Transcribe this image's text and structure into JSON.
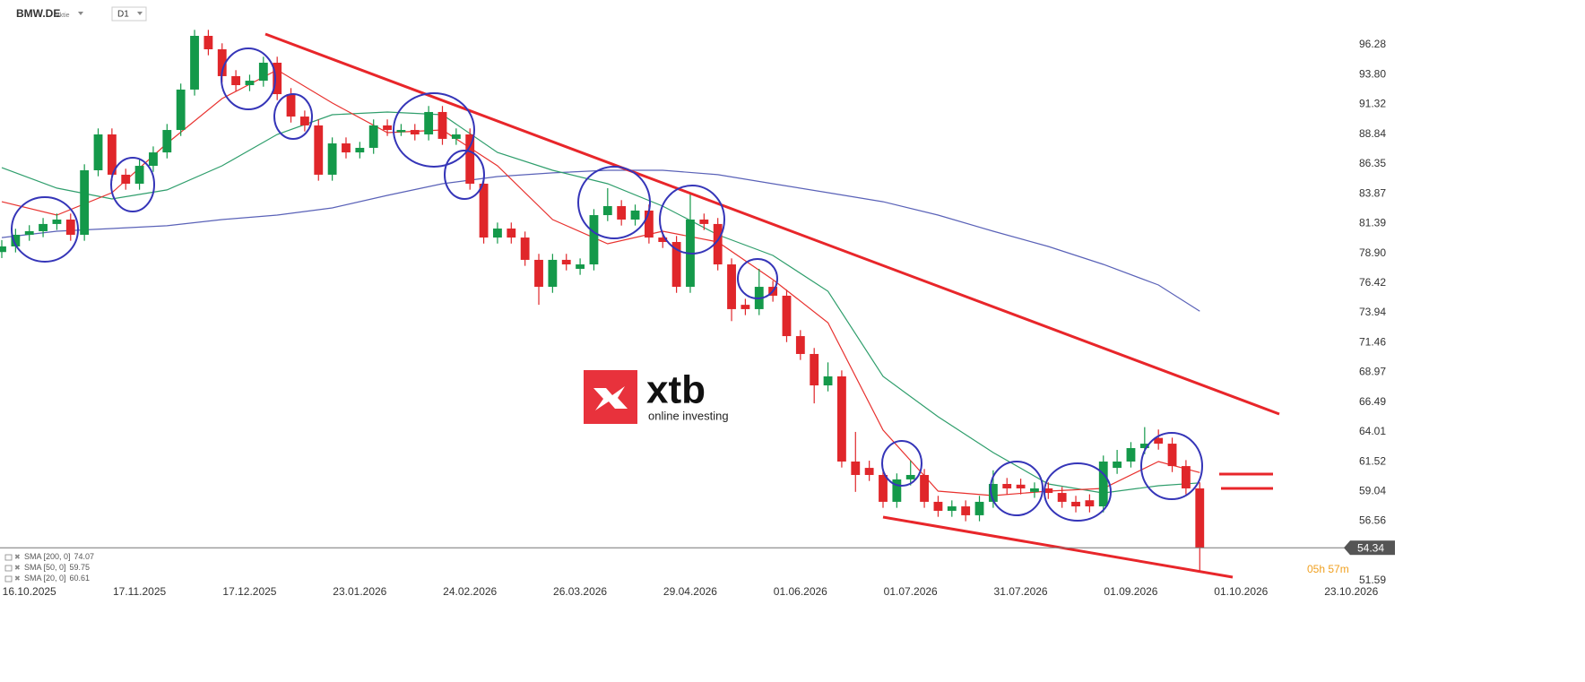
{
  "chart_data": {
    "type": "candlestick",
    "symbol": "BMW.DE",
    "instrument_type": "Aktie",
    "timeframe": "D1",
    "countdown": "05h 57m",
    "watermark": {
      "brand": "xtb",
      "tagline": "online investing"
    },
    "up_color": "#14994a",
    "down_color": "#e0262a",
    "xlim": [
      -0.13,
      97.53
    ],
    "ylim": [
      51.44,
      100.02
    ],
    "xticks": [
      {
        "value": 2,
        "label": "16.10.2025"
      },
      {
        "value": 10,
        "label": "17.11.2025"
      },
      {
        "value": 18,
        "label": "17.12.2025"
      },
      {
        "value": 26,
        "label": "23.01.2026"
      },
      {
        "value": 34,
        "label": "24.02.2026"
      },
      {
        "value": 42,
        "label": "26.03.2026"
      },
      {
        "value": 50,
        "label": "29.04.2026"
      },
      {
        "value": 58,
        "label": "01.06.2026"
      },
      {
        "value": 66,
        "label": "01.07.2026"
      },
      {
        "value": 74,
        "label": "31.07.2026"
      },
      {
        "value": 82,
        "label": "01.09.2026"
      },
      {
        "value": 90,
        "label": "01.10.2026"
      },
      {
        "value": 98,
        "label": "23.10.2026"
      }
    ],
    "yticks": [
      96.28,
      {
        "value": 93.8,
        "label": "93.80"
      },
      91.32,
      88.84,
      86.35,
      83.87,
      81.39,
      {
        "value": 78.9,
        "label": "78.90"
      },
      76.42,
      73.94,
      71.46,
      68.97,
      66.49,
      64.01,
      61.52,
      59.04,
      56.56,
      51.59
    ],
    "open": [
      79.0,
      79.47,
      80.44,
      80.74,
      81.34,
      81.71,
      80.44,
      85.82,
      88.81,
      85.45,
      84.7,
      86.19,
      87.31,
      89.18,
      92.55,
      97.03,
      95.91,
      93.67,
      92.92,
      93.29,
      94.79,
      92.17,
      90.3,
      89.56,
      85.45,
      88.06,
      87.31,
      87.69,
      89.56,
      89.0,
      89.18,
      88.81,
      90.68,
      88.44,
      88.81,
      84.7,
      80.21,
      80.96,
      80.21,
      78.35,
      76.1,
      78.35,
      77.6,
      77.97,
      82.08,
      82.83,
      81.71,
      82.46,
      80.21,
      79.84,
      76.1,
      81.71,
      81.34,
      77.97,
      74.6,
      74.24,
      76.1,
      75.36,
      71.99,
      70.5,
      67.88,
      68.63,
      61.53,
      61.0,
      60.41,
      58.17,
      60.04,
      60.41,
      58.17,
      57.42,
      57.79,
      57.05,
      58.17,
      59.66,
      59.6,
      59.0,
      59.29,
      58.91,
      58.17,
      58.3,
      57.79,
      61.0,
      61.53,
      62.65,
      63.5,
      63.02,
      61.15,
      59.29
    ],
    "high": [
      80.0,
      80.94,
      81.24,
      81.84,
      82.21,
      82.21,
      86.32,
      89.31,
      89.31,
      85.95,
      86.69,
      87.81,
      89.68,
      93.05,
      97.53,
      97.53,
      96.41,
      94.17,
      93.79,
      95.29,
      95.29,
      92.67,
      90.8,
      90.06,
      88.56,
      88.56,
      88.19,
      90.06,
      90.06,
      89.68,
      89.68,
      91.18,
      91.18,
      89.31,
      89.31,
      85.2,
      81.46,
      81.46,
      80.71,
      78.85,
      78.85,
      78.85,
      78.47,
      82.58,
      84.33,
      83.33,
      82.96,
      82.96,
      80.71,
      80.34,
      83.96,
      82.21,
      81.84,
      78.47,
      75.1,
      77.6,
      76.6,
      75.86,
      72.49,
      71.0,
      69.8,
      69.13,
      64.0,
      61.6,
      60.91,
      60.54,
      61.6,
      60.91,
      58.67,
      58.29,
      58.29,
      58.67,
      60.8,
      60.16,
      60.1,
      59.79,
      59.79,
      59.41,
      58.67,
      58.8,
      62.03,
      62.5,
      63.15,
      64.4,
      64.2,
      63.52,
      61.65,
      59.79
    ],
    "low": [
      78.5,
      78.97,
      79.94,
      80.24,
      80.84,
      79.94,
      79.94,
      85.32,
      84.95,
      84.2,
      84.2,
      85.69,
      86.81,
      88.68,
      92.05,
      95.41,
      93.17,
      92.42,
      92.42,
      92.79,
      91.67,
      89.8,
      89.06,
      84.95,
      84.95,
      86.81,
      86.81,
      87.19,
      88.68,
      88.68,
      88.31,
      88.31,
      87.94,
      87.94,
      84.2,
      79.71,
      79.71,
      79.71,
      77.85,
      74.6,
      75.6,
      77.47,
      77.1,
      77.47,
      81.58,
      81.21,
      81.21,
      79.71,
      79.34,
      75.6,
      75.6,
      80.84,
      77.47,
      73.24,
      73.74,
      73.74,
      74.86,
      71.49,
      70.0,
      66.38,
      67.38,
      61.03,
      59.0,
      59.91,
      57.67,
      57.67,
      59.54,
      57.67,
      56.92,
      56.92,
      56.55,
      56.55,
      57.67,
      58.79,
      58.79,
      58.5,
      58.41,
      57.67,
      57.29,
      57.29,
      57.29,
      60.5,
      61.03,
      62.15,
      62.52,
      60.65,
      58.79,
      52.3
    ],
    "close": [
      79.47,
      80.44,
      80.74,
      81.34,
      81.71,
      80.44,
      85.82,
      88.81,
      85.45,
      84.7,
      86.19,
      87.31,
      89.18,
      92.55,
      97.03,
      95.91,
      93.67,
      92.92,
      93.29,
      94.79,
      92.17,
      90.3,
      89.56,
      85.45,
      88.06,
      87.31,
      87.69,
      89.56,
      89.18,
      89.18,
      88.81,
      90.68,
      88.44,
      88.81,
      84.7,
      80.21,
      80.96,
      80.21,
      78.35,
      76.1,
      78.35,
      77.97,
      77.97,
      82.08,
      82.83,
      81.71,
      82.46,
      80.21,
      79.84,
      76.1,
      81.71,
      81.34,
      77.97,
      74.24,
      74.24,
      76.1,
      75.36,
      71.99,
      70.5,
      67.88,
      68.63,
      61.53,
      60.41,
      60.41,
      58.17,
      60.04,
      60.41,
      58.17,
      57.42,
      57.79,
      57.05,
      58.17,
      59.66,
      59.29,
      59.29,
      59.29,
      58.91,
      58.17,
      57.79,
      57.79,
      61.53,
      61.53,
      62.65,
      63.02,
      63.02,
      61.15,
      59.29,
      54.34
    ],
    "series": [
      {
        "name": "SMA [200, 0]",
        "color": "#5a62b8",
        "x": [
          0,
          4,
          8,
          12,
          16,
          20,
          24,
          28,
          32,
          36,
          40,
          44,
          48,
          52,
          56,
          60,
          64,
          68,
          72,
          76,
          80,
          84,
          87
        ],
        "values": [
          80.21,
          80.74,
          80.96,
          81.19,
          81.71,
          82.08,
          82.68,
          83.73,
          84.7,
          85.3,
          85.6,
          85.82,
          85.82,
          85.45,
          84.7,
          83.95,
          83.2,
          82.08,
          80.74,
          79.47,
          77.97,
          76.25,
          74.07
        ]
      },
      {
        "name": "SMA [50, 0]",
        "color": "#2f9e6c",
        "x": [
          0,
          4,
          8,
          12,
          16,
          20,
          24,
          28,
          32,
          36,
          40,
          44,
          48,
          52,
          56,
          60,
          64,
          68,
          72,
          76,
          80,
          84,
          87
        ],
        "values": [
          86.04,
          84.33,
          83.43,
          84.18,
          86.19,
          88.81,
          90.45,
          90.68,
          90.45,
          87.31,
          85.82,
          84.7,
          82.83,
          80.44,
          78.72,
          75.73,
          68.63,
          65.27,
          62.28,
          59.66,
          58.91,
          59.51,
          59.75
        ]
      },
      {
        "name": "SMA [20, 0]",
        "color": "#e8322f",
        "x": [
          0,
          4,
          8,
          12,
          16,
          20,
          24,
          28,
          32,
          36,
          40,
          44,
          48,
          52,
          56,
          60,
          64,
          68,
          72,
          76,
          80,
          84,
          87
        ],
        "values": [
          83.2,
          82.08,
          83.95,
          88.06,
          91.8,
          94.19,
          91.43,
          88.96,
          89.18,
          86.19,
          81.71,
          79.69,
          80.74,
          79.84,
          76.7,
          73.11,
          64.15,
          59.06,
          58.69,
          59.06,
          59.29,
          61.53,
          60.61
        ]
      }
    ]
  }
}
